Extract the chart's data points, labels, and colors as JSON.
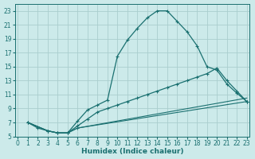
{
  "xlabel": "Humidex (Indice chaleur)",
  "bg_color": "#cceaea",
  "line_color": "#1a7070",
  "grid_color": "#aacece",
  "xlim": [
    0,
    23
  ],
  "ylim": [
    5,
    24
  ],
  "xticks": [
    0,
    1,
    2,
    3,
    4,
    5,
    6,
    7,
    8,
    9,
    10,
    11,
    12,
    13,
    14,
    15,
    16,
    17,
    18,
    19,
    20,
    21,
    22,
    23
  ],
  "yticks": [
    5,
    7,
    9,
    11,
    13,
    15,
    17,
    19,
    21,
    23
  ],
  "curve1_x": [
    1,
    2,
    3,
    4,
    5,
    6,
    7,
    8,
    9,
    10,
    11,
    12,
    13,
    14,
    15,
    16,
    17,
    18,
    19,
    20,
    21,
    22,
    23
  ],
  "curve1_y": [
    7,
    6.2,
    5.8,
    5.5,
    5.5,
    7.2,
    8.8,
    9.5,
    10.2,
    16.5,
    18.8,
    20.5,
    22.0,
    23.0,
    23.0,
    21.5,
    20.0,
    18.0,
    15.0,
    14.5,
    12.5,
    11.2,
    10.0
  ],
  "curve2_x": [
    1,
    3,
    4,
    5,
    6,
    7,
    8,
    9,
    10,
    11,
    12,
    13,
    14,
    15,
    16,
    17,
    18,
    19,
    20,
    21,
    22,
    23
  ],
  "curve2_y": [
    7,
    5.8,
    5.5,
    5.5,
    6.5,
    7.5,
    8.5,
    9.0,
    9.5,
    10.0,
    10.5,
    11.0,
    11.5,
    12.0,
    12.5,
    13.0,
    13.5,
    14.0,
    14.8,
    13.0,
    11.5,
    10.0
  ],
  "curve3_x": [
    1,
    3,
    4,
    5,
    6,
    23
  ],
  "curve3_y": [
    7,
    5.8,
    5.5,
    5.5,
    6.2,
    10.0
  ],
  "curve4_x": [
    1,
    3,
    4,
    5,
    6,
    23
  ],
  "curve4_y": [
    7,
    5.8,
    5.5,
    5.5,
    6.2,
    10.5
  ]
}
